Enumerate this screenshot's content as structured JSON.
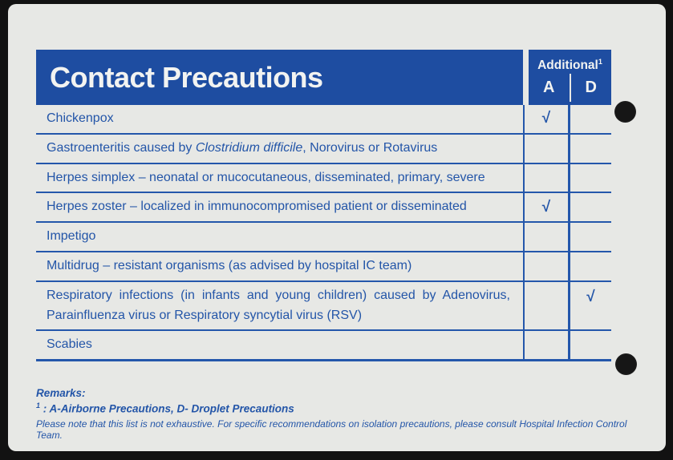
{
  "colors": {
    "header_blue": "#1e4da1",
    "grid_line_blue": "#2457ab",
    "text_blue": "#2355a8",
    "card_background": "#e7e8e5",
    "scan_background": "#121212"
  },
  "header": {
    "title": "Contact Precautions",
    "additional_label": "Additional",
    "additional_sup": "1",
    "col_a_label": "A",
    "col_d_label": "D"
  },
  "table": {
    "check_glyph": "√",
    "rows": [
      {
        "segments": [
          {
            "text": "Chickenpox",
            "italic": false
          }
        ],
        "a": true,
        "d": false
      },
      {
        "segments": [
          {
            "text": "Gastroenteritis caused by ",
            "italic": false
          },
          {
            "text": "Clostridium difficile",
            "italic": true
          },
          {
            "text": ", Norovirus or Rotavirus",
            "italic": false
          }
        ],
        "a": false,
        "d": false
      },
      {
        "segments": [
          {
            "text": "Herpes simplex – neonatal or mucocutaneous, disseminated, primary, severe",
            "italic": false
          }
        ],
        "a": false,
        "d": false
      },
      {
        "segments": [
          {
            "text": "Herpes zoster – localized in immunocompromised patient or disseminated",
            "italic": false
          }
        ],
        "a": true,
        "d": false
      },
      {
        "segments": [
          {
            "text": "Impetigo",
            "italic": false
          }
        ],
        "a": false,
        "d": false
      },
      {
        "segments": [
          {
            "text": "Multidrug – resistant organisms (as advised by hospital IC team)",
            "italic": false
          }
        ],
        "a": false,
        "d": false
      },
      {
        "segments": [
          {
            "text": "Respiratory infections (in infants and young children) caused by Adenovirus, Parainfluenza virus or Respiratory syncytial virus (RSV)",
            "italic": false
          }
        ],
        "a": false,
        "d": true
      },
      {
        "segments": [
          {
            "text": "Scabies",
            "italic": false
          }
        ],
        "a": false,
        "d": false
      }
    ]
  },
  "remarks": {
    "heading": "Remarks:",
    "footnote_sup": "1",
    "footnote_text": " : A-Airborne Precautions, D- Droplet Precautions",
    "note": "Please note that this list is not exhaustive. For specific recommendations on isolation precautions, please consult Hospital Infection Control Team."
  }
}
